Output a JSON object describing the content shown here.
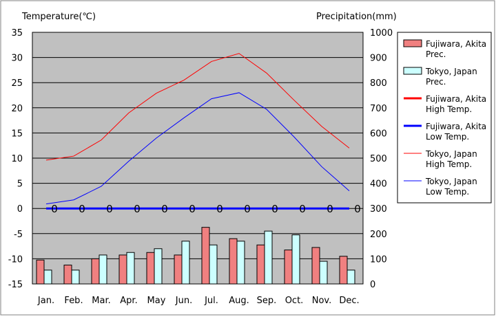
{
  "chart_data": {
    "type": "bar",
    "y_left_label": "Temperature(℃)",
    "y_right_label": "Precipitation(mm)",
    "y_left_range": [
      -15,
      35
    ],
    "y_left_ticks": [
      35,
      30,
      25,
      20,
      15,
      10,
      5,
      0,
      -5,
      -10,
      -15
    ],
    "y_right_range": [
      0,
      1000
    ],
    "y_right_ticks": [
      1000,
      900,
      800,
      700,
      600,
      500,
      400,
      300,
      200,
      100,
      0
    ],
    "categories": [
      "Jan.",
      "Feb.",
      "Mar.",
      "Apr.",
      "May",
      "Jun.",
      "Jul.",
      "Aug.",
      "Sep.",
      "Oct.",
      "Nov.",
      "Dec."
    ],
    "grid": true,
    "legend_position": "right",
    "zero_labels": [
      "0",
      "0",
      "0",
      "0",
      "0",
      "0",
      "0",
      "0",
      "0",
      "0",
      "0",
      "0"
    ],
    "bar_series": [
      {
        "name": "Fujiwara, Akita Prec.",
        "color": "#f08080",
        "values": [
          95,
          75,
          100,
          115,
          125,
          115,
          225,
          180,
          155,
          135,
          145,
          110
        ]
      },
      {
        "name": "Tokyo, Japan Prec.",
        "color": "#ccffff",
        "values": [
          55,
          55,
          115,
          125,
          140,
          170,
          155,
          170,
          210,
          195,
          90,
          55
        ]
      }
    ],
    "line_series": [
      {
        "name": "Fujiwara, Akita High Temp.",
        "color": "#ff0000",
        "width": 1.3,
        "values": null
      },
      {
        "name": "Fujiwara, Akita Low Temp.",
        "color": "#0000ff",
        "width": 3,
        "values": null
      },
      {
        "name": "Tokyo, Japan High Temp.",
        "color": "#ff0000",
        "width": 1,
        "values": [
          9.6,
          10.4,
          13.6,
          19.0,
          22.9,
          25.5,
          29.2,
          30.8,
          26.9,
          21.5,
          16.3,
          12.0
        ]
      },
      {
        "name": "Tokyo, Japan Low Temp.",
        "color": "#0000ff",
        "width": 1,
        "values": [
          0.9,
          1.7,
          4.4,
          9.4,
          14.0,
          18.0,
          21.8,
          23.0,
          19.7,
          14.2,
          8.3,
          3.5
        ]
      }
    ],
    "legend": [
      {
        "kind": "bar",
        "color": "#f08080",
        "line1": "Fujiwara, Akita",
        "line2": "Prec."
      },
      {
        "kind": "bar",
        "color": "#ccffff",
        "line1": "Tokyo, Japan",
        "line2": "Prec."
      },
      {
        "kind": "line",
        "color": "#ff0000",
        "width": 3,
        "line1": "Fujiwara, Akita",
        "line2": "High Temp."
      },
      {
        "kind": "line",
        "color": "#0000ff",
        "width": 3,
        "line1": "Fujiwara, Akita",
        "line2": "Low Temp."
      },
      {
        "kind": "line",
        "color": "#ff0000",
        "width": 1,
        "line1": "Tokyo, Japan",
        "line2": "High Temp."
      },
      {
        "kind": "line",
        "color": "#0000ff",
        "width": 1,
        "line1": "Tokyo, Japan",
        "line2": "Low Temp."
      }
    ],
    "colors": {
      "plot_bg": "#c0c0c0",
      "grid": "#000000",
      "border": "#000000",
      "text": "#000000"
    }
  }
}
